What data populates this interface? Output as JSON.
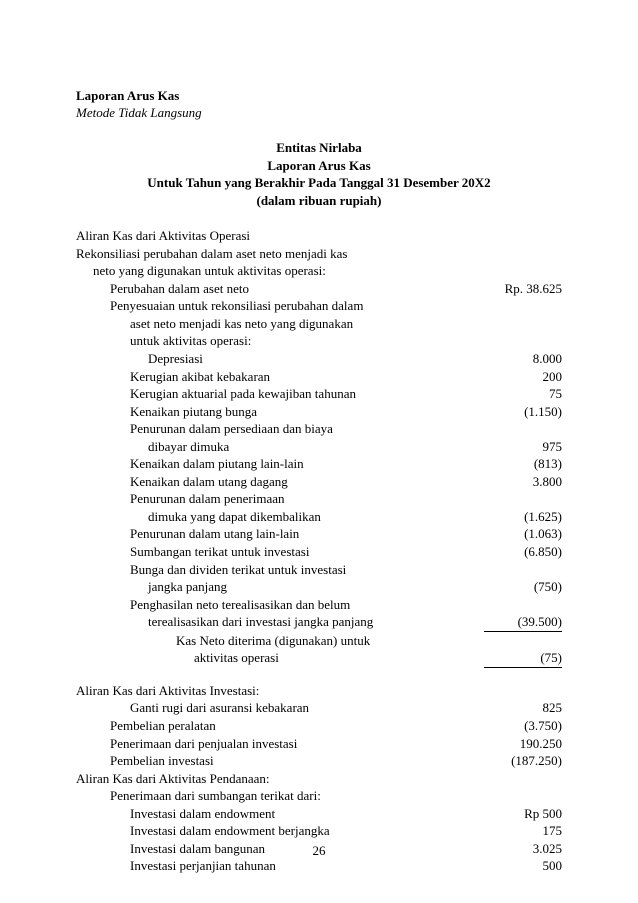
{
  "header": {
    "title_bold": "Laporan Arus Kas",
    "subtitle_italic": "Metode Tidak Langsung"
  },
  "doc_heading": {
    "l1": "Entitas Nirlaba",
    "l2": "Laporan Arus Kas",
    "l3": "Untuk Tahun yang Berakhir Pada Tanggal 31 Desember 20X2",
    "l4": "(dalam ribuan rupiah)"
  },
  "operasi": {
    "section_title": "Aliran Kas dari Aktivitas Operasi",
    "rekons_l1": "Rekonsiliasi perubahan dalam aset neto menjadi kas",
    "rekons_l2": "neto yang digunakan untuk aktivitas operasi:",
    "perubahan_label": "Perubahan dalam aset neto",
    "perubahan_val": "Rp. 38.625",
    "penyesuaian_l1": "Penyesuaian untuk rekonsiliasi perubahan dalam",
    "penyesuaian_l2": "aset neto menjadi kas neto yang digunakan",
    "penyesuaian_l3": "untuk aktivitas operasi:",
    "items": [
      {
        "label": "Depresiasi",
        "val": "8.000",
        "indent": "ind4"
      },
      {
        "label": "Kerugian akibat kebakaran",
        "val": "200",
        "indent": "ind3"
      },
      {
        "label": "Kerugian aktuarial pada kewajiban tahunan",
        "val": "75",
        "indent": "ind3"
      },
      {
        "label": "Kenaikan piutang bunga",
        "val": "(1.150)",
        "indent": "ind3"
      }
    ],
    "penurunan_persediaan_l1": "Penurunan dalam persediaan dan biaya",
    "penurunan_persediaan_l2": "dibayar dimuka",
    "penurunan_persediaan_val": "975",
    "items2": [
      {
        "label": "Kenaikan dalam piutang lain-lain",
        "val": "(813)",
        "indent": "ind3"
      },
      {
        "label": "Kenaikan dalam utang dagang",
        "val": "3.800",
        "indent": "ind3"
      }
    ],
    "penurunan_penerimaan_l1": "Penurunan dalam penerimaan",
    "penurunan_penerimaan_l2": "dimuka yang dapat dikembalikan",
    "penurunan_penerimaan_val": "(1.625)",
    "items3": [
      {
        "label": "Penurunan dalam utang lain-lain",
        "val": "(1.063)",
        "indent": "ind3"
      },
      {
        "label": "Sumbangan terikat untuk investasi",
        "val": "(6.850)",
        "indent": "ind3"
      }
    ],
    "bunga_l1": "Bunga dan dividen terikat untuk investasi",
    "bunga_l2": "jangka panjang",
    "bunga_val": "(750)",
    "penghasilan_l1": "Penghasilan neto terealisasikan dan belum",
    "penghasilan_l2": "terealisasikan dari investasi jangka panjang",
    "penghasilan_val": "(39.500)",
    "kasneto_l1": "Kas Neto diterima (digunakan) untuk",
    "kasneto_l2": "aktivitas operasi",
    "kasneto_val": "(75)"
  },
  "investasi": {
    "section_title": "Aliran Kas dari Aktivitas Investasi:",
    "items": [
      {
        "label": "Ganti rugi dari asuransi kebakaran",
        "val": "825",
        "indent": "ind3"
      },
      {
        "label": "Pembelian peralatan",
        "val": "(3.750)",
        "indent": "ind2"
      },
      {
        "label": "Penerimaan dari penjualan investasi",
        "val": "190.250",
        "indent": "ind2"
      },
      {
        "label": "Pembelian investasi",
        "val": "(187.250)",
        "indent": "ind2"
      }
    ]
  },
  "pendanaan": {
    "section_title": "Aliran Kas dari Aktivitas Pendanaan:",
    "sub1": "Penerimaan dari sumbangan terikat dari:",
    "items": [
      {
        "label": "Investasi dalam endowment",
        "val": "Rp 500",
        "indent": "ind3"
      },
      {
        "label": "Investasi dalam endowment berjangka",
        "val": "175",
        "indent": "ind3"
      },
      {
        "label": "Investasi dalam bangunan",
        "val": "3.025",
        "indent": "ind3"
      },
      {
        "label": "Investasi perjanjian tahunan",
        "val": "500",
        "indent": "ind3"
      }
    ]
  },
  "page_number": "26"
}
